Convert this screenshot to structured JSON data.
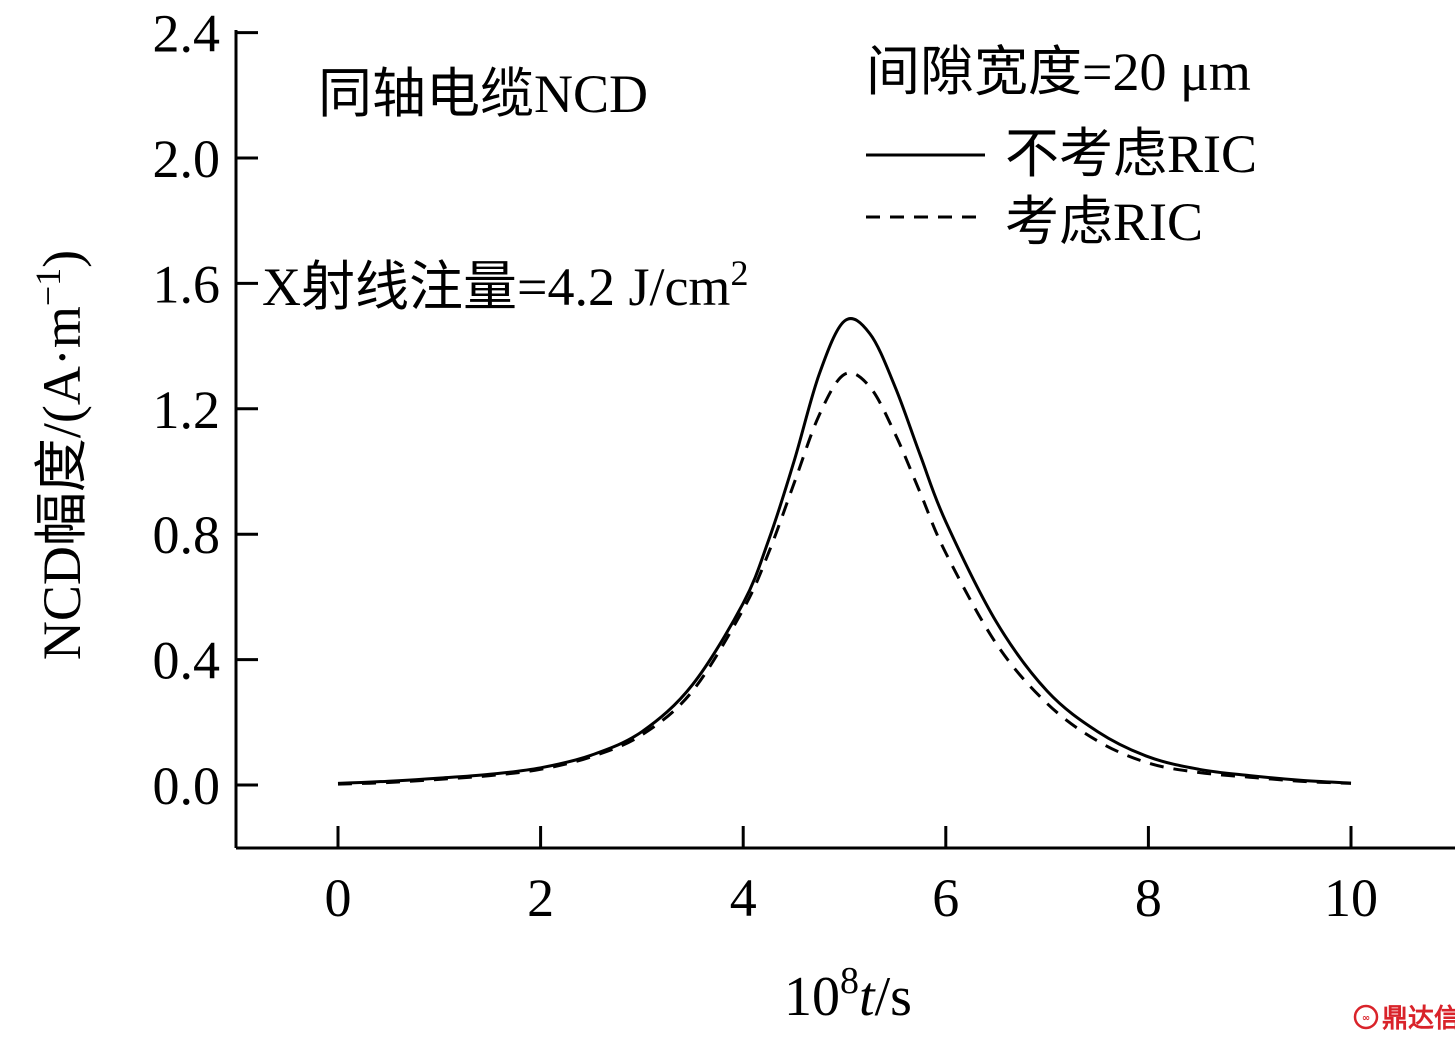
{
  "chart_data": {
    "type": "line",
    "xlabel": {
      "prefix": "10",
      "sup": "8",
      "italic": "t",
      "suffix": "/s"
    },
    "ylabel": {
      "main": "NCD幅度/(A·m",
      "sup": "−1",
      "close": ")"
    },
    "xlim": [
      -1,
      10.5
    ],
    "ylim": [
      -0.2,
      2.4
    ],
    "xticks": [
      0,
      2,
      4,
      6,
      8,
      10
    ],
    "xtick_labels": [
      "0",
      "2",
      "4",
      "6",
      "8",
      "10"
    ],
    "yticks": [
      0.0,
      0.4,
      0.8,
      1.2,
      1.6,
      2.0,
      2.4
    ],
    "ytick_labels": [
      "0.0",
      "0.4",
      "0.8",
      "1.2",
      "1.6",
      "2.0",
      "2.4"
    ],
    "grid": false,
    "legend_position": "top-right",
    "annotations": {
      "top_left": "同轴电缆NCD",
      "gap": "间隙宽度=20 μm",
      "dose_main": "X射线注量=4.2 J/cm",
      "dose_sup": "2"
    },
    "x": [
      0,
      0.5,
      1,
      1.5,
      2,
      2.5,
      3,
      3.5,
      4,
      4.25,
      4.5,
      4.75,
      5,
      5.25,
      5.5,
      5.75,
      6,
      6.5,
      7,
      7.5,
      8,
      8.5,
      9,
      9.5,
      10
    ],
    "series": [
      {
        "name": "不考虑RIC",
        "style": "solid",
        "values": [
          0.005,
          0.012,
          0.022,
          0.034,
          0.055,
          0.095,
          0.17,
          0.32,
          0.58,
          0.78,
          1.03,
          1.31,
          1.48,
          1.44,
          1.27,
          1.05,
          0.84,
          0.52,
          0.3,
          0.17,
          0.09,
          0.05,
          0.03,
          0.015,
          0.006
        ]
      },
      {
        "name": "考虑RIC",
        "style": "dashed",
        "values": [
          0.003,
          0.008,
          0.018,
          0.03,
          0.05,
          0.09,
          0.16,
          0.3,
          0.56,
          0.74,
          0.96,
          1.18,
          1.31,
          1.27,
          1.12,
          0.93,
          0.74,
          0.45,
          0.26,
          0.14,
          0.07,
          0.04,
          0.025,
          0.012,
          0.005
        ]
      }
    ]
  },
  "watermark": {
    "text": "鼎达信",
    "color": "#d9232a"
  }
}
